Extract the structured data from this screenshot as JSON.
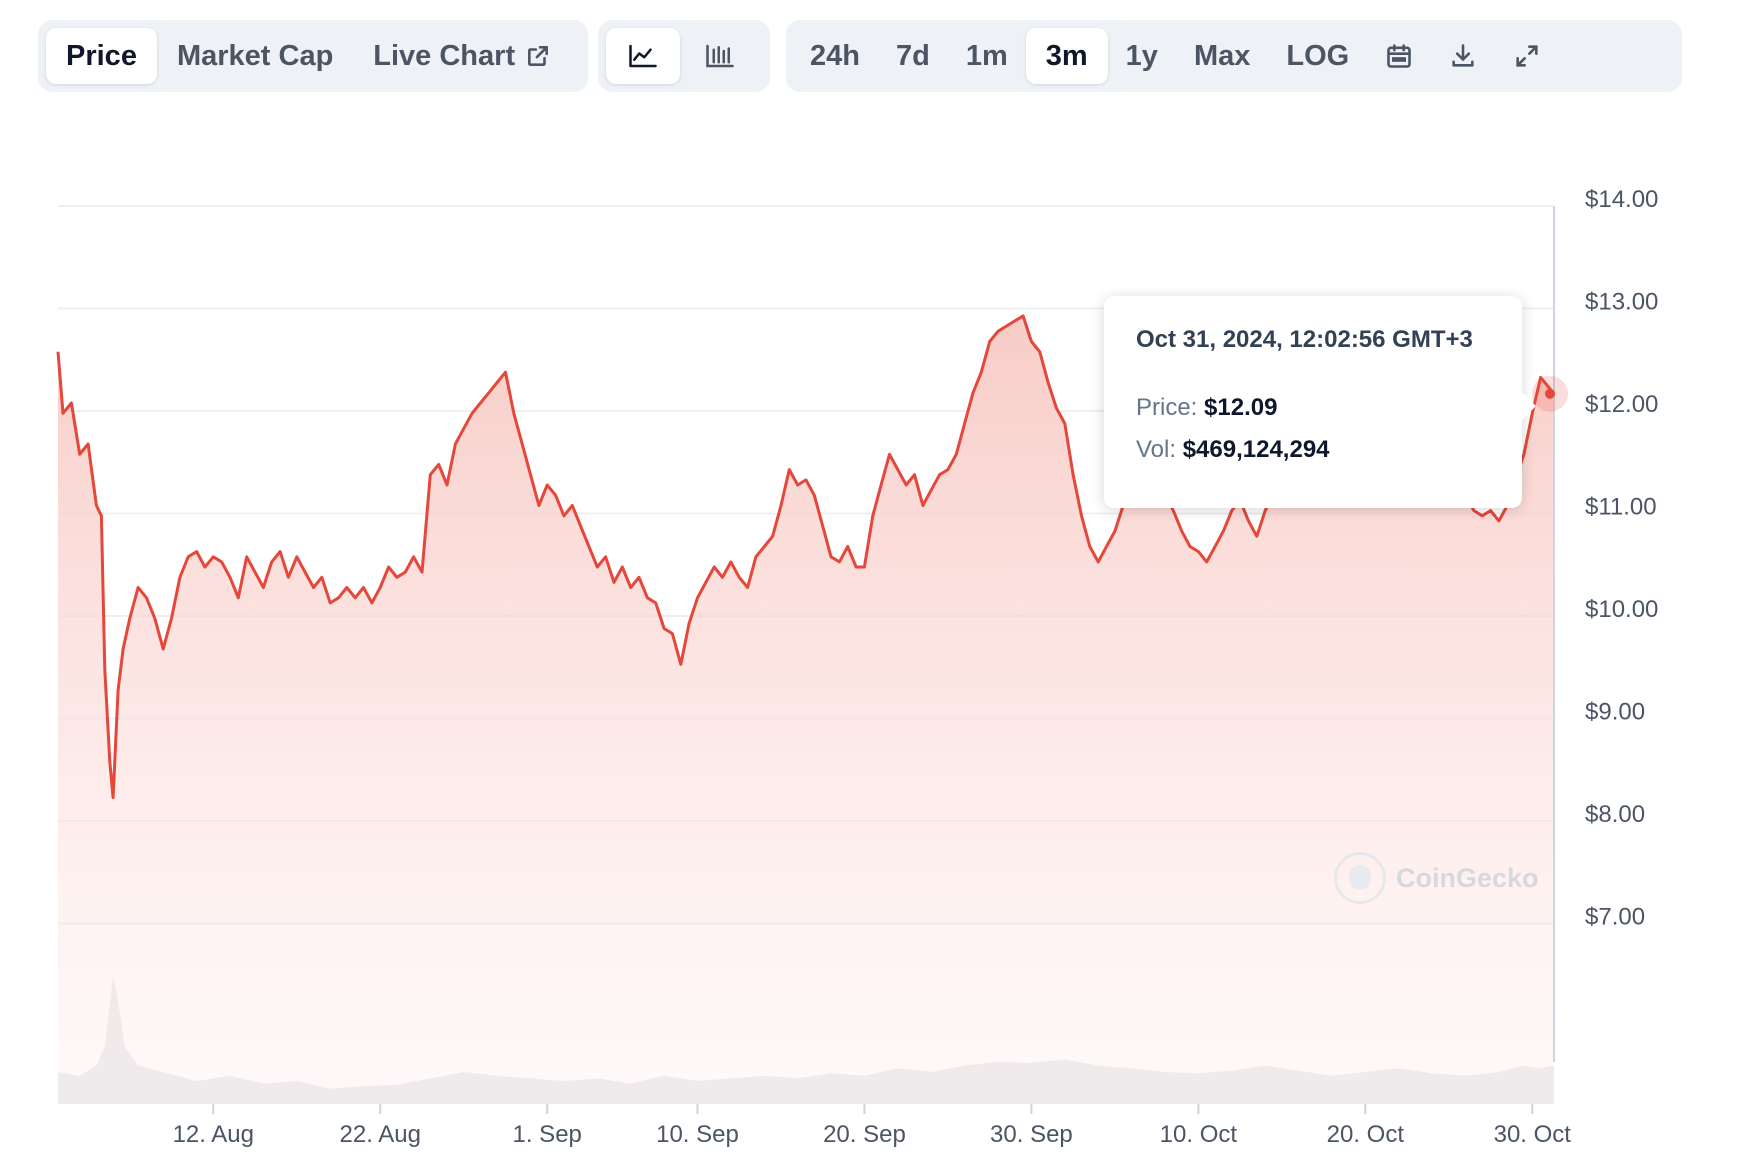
{
  "toolbar": {
    "view_tabs": [
      {
        "label": "Price",
        "active": true
      },
      {
        "label": "Market Cap",
        "active": false
      },
      {
        "label": "Live Chart",
        "active": false
      }
    ],
    "chart_types": [
      {
        "icon": "line-chart-icon",
        "active": true
      },
      {
        "icon": "candlestick-chart-icon",
        "active": false
      }
    ],
    "ranges": [
      {
        "label": "24h",
        "active": false
      },
      {
        "label": "7d",
        "active": false
      },
      {
        "label": "1m",
        "active": false
      },
      {
        "label": "3m",
        "active": true
      },
      {
        "label": "1y",
        "active": false
      },
      {
        "label": "Max",
        "active": false
      },
      {
        "label": "LOG",
        "active": false
      }
    ],
    "tools": [
      {
        "icon": "calendar-icon"
      },
      {
        "icon": "download-icon"
      },
      {
        "icon": "fullscreen-icon"
      }
    ]
  },
  "tooltip": {
    "date": "Oct 31, 2024, 12:02:56 GMT+3",
    "price_label": "Price:",
    "price_value": "$12.09",
    "vol_label": "Vol:",
    "vol_value": "$469,124,294"
  },
  "watermark": "CoinGecko",
  "colors": {
    "line": "#e5473a",
    "area_top": "#f8c9c4",
    "volume": "#e5e7eb",
    "grid": "#edf0f3",
    "axis_text": "#4b5563"
  },
  "chart_data": {
    "type": "area",
    "y_ticks": [
      "$14.00",
      "$13.00",
      "$12.00",
      "$11.00",
      "$10.00",
      "$9.00",
      "$8.00",
      "$7.00"
    ],
    "y_tick_values": [
      14,
      13,
      12,
      11,
      10,
      9,
      8,
      7
    ],
    "x_ticks": [
      "12. Aug",
      "22. Aug",
      "1. Sep",
      "10. Sep",
      "20. Sep",
      "30. Sep",
      "10. Oct",
      "20. Oct",
      "30. Oct"
    ],
    "x_tick_days": [
      9,
      19,
      29,
      38,
      48,
      58,
      68,
      78,
      88
    ],
    "x_range_days": [
      -0.3,
      89.3
    ],
    "ylim": [
      7,
      14
    ],
    "price_series": {
      "name": "Price",
      "points": [
        [
          -0.3,
          12.5
        ],
        [
          0.0,
          11.9
        ],
        [
          0.5,
          12.0
        ],
        [
          1.0,
          11.5
        ],
        [
          1.5,
          11.6
        ],
        [
          2.0,
          11.0
        ],
        [
          2.3,
          10.9
        ],
        [
          2.5,
          9.4
        ],
        [
          2.8,
          8.5
        ],
        [
          3.0,
          8.15
        ],
        [
          3.3,
          9.2
        ],
        [
          3.6,
          9.6
        ],
        [
          4.0,
          9.9
        ],
        [
          4.5,
          10.2
        ],
        [
          5.0,
          10.1
        ],
        [
          5.5,
          9.9
        ],
        [
          6.0,
          9.6
        ],
        [
          6.5,
          9.9
        ],
        [
          7.0,
          10.3
        ],
        [
          7.5,
          10.5
        ],
        [
          8.0,
          10.55
        ],
        [
          8.5,
          10.4
        ],
        [
          9.0,
          10.5
        ],
        [
          9.5,
          10.45
        ],
        [
          10.0,
          10.3
        ],
        [
          10.5,
          10.1
        ],
        [
          11.0,
          10.5
        ],
        [
          11.5,
          10.35
        ],
        [
          12.0,
          10.2
        ],
        [
          12.5,
          10.45
        ],
        [
          13.0,
          10.55
        ],
        [
          13.5,
          10.3
        ],
        [
          14.0,
          10.5
        ],
        [
          14.5,
          10.35
        ],
        [
          15.0,
          10.2
        ],
        [
          15.5,
          10.3
        ],
        [
          16.0,
          10.05
        ],
        [
          16.5,
          10.1
        ],
        [
          17.0,
          10.2
        ],
        [
          17.5,
          10.1
        ],
        [
          18.0,
          10.2
        ],
        [
          18.5,
          10.05
        ],
        [
          19.0,
          10.2
        ],
        [
          19.5,
          10.4
        ],
        [
          20.0,
          10.3
        ],
        [
          20.5,
          10.35
        ],
        [
          21.0,
          10.5
        ],
        [
          21.5,
          10.35
        ],
        [
          22.0,
          11.3
        ],
        [
          22.5,
          11.4
        ],
        [
          23.0,
          11.2
        ],
        [
          23.5,
          11.6
        ],
        [
          24.0,
          11.75
        ],
        [
          24.5,
          11.9
        ],
        [
          25.0,
          12.0
        ],
        [
          25.5,
          12.1
        ],
        [
          26.0,
          12.2
        ],
        [
          26.5,
          12.3
        ],
        [
          27.0,
          11.9
        ],
        [
          27.5,
          11.6
        ],
        [
          28.0,
          11.3
        ],
        [
          28.5,
          11.0
        ],
        [
          29.0,
          11.2
        ],
        [
          29.5,
          11.1
        ],
        [
          30.0,
          10.9
        ],
        [
          30.5,
          11.0
        ],
        [
          31.0,
          10.8
        ],
        [
          31.5,
          10.6
        ],
        [
          32.0,
          10.4
        ],
        [
          32.5,
          10.5
        ],
        [
          33.0,
          10.25
        ],
        [
          33.5,
          10.4
        ],
        [
          34.0,
          10.2
        ],
        [
          34.5,
          10.3
        ],
        [
          35.0,
          10.1
        ],
        [
          35.5,
          10.05
        ],
        [
          36.0,
          9.8
        ],
        [
          36.5,
          9.75
        ],
        [
          37.0,
          9.45
        ],
        [
          37.5,
          9.85
        ],
        [
          38.0,
          10.1
        ],
        [
          38.5,
          10.25
        ],
        [
          39.0,
          10.4
        ],
        [
          39.5,
          10.3
        ],
        [
          40.0,
          10.45
        ],
        [
          40.5,
          10.3
        ],
        [
          41.0,
          10.2
        ],
        [
          41.5,
          10.5
        ],
        [
          42.0,
          10.6
        ],
        [
          42.5,
          10.7
        ],
        [
          43.0,
          11.0
        ],
        [
          43.5,
          11.35
        ],
        [
          44.0,
          11.2
        ],
        [
          44.5,
          11.25
        ],
        [
          45.0,
          11.1
        ],
        [
          45.5,
          10.8
        ],
        [
          46.0,
          10.5
        ],
        [
          46.5,
          10.45
        ],
        [
          47.0,
          10.6
        ],
        [
          47.5,
          10.4
        ],
        [
          48.0,
          10.4
        ],
        [
          48.5,
          10.9
        ],
        [
          49.0,
          11.2
        ],
        [
          49.5,
          11.5
        ],
        [
          50.0,
          11.35
        ],
        [
          50.5,
          11.2
        ],
        [
          51.0,
          11.3
        ],
        [
          51.5,
          11.0
        ],
        [
          52.0,
          11.15
        ],
        [
          52.5,
          11.3
        ],
        [
          53.0,
          11.35
        ],
        [
          53.5,
          11.5
        ],
        [
          54.0,
          11.8
        ],
        [
          54.5,
          12.1
        ],
        [
          55.0,
          12.3
        ],
        [
          55.5,
          12.6
        ],
        [
          56.0,
          12.7
        ],
        [
          56.5,
          12.75
        ],
        [
          57.0,
          12.8
        ],
        [
          57.5,
          12.85
        ],
        [
          58.0,
          12.6
        ],
        [
          58.5,
          12.5
        ],
        [
          59.0,
          12.2
        ],
        [
          59.5,
          11.95
        ],
        [
          60.0,
          11.8
        ],
        [
          60.5,
          11.3
        ],
        [
          61.0,
          10.9
        ],
        [
          61.5,
          10.6
        ],
        [
          62.0,
          10.45
        ],
        [
          62.5,
          10.6
        ],
        [
          63.0,
          10.75
        ],
        [
          63.5,
          11.0
        ],
        [
          64.0,
          11.1
        ],
        [
          64.5,
          11.2
        ],
        [
          65.0,
          11.3
        ],
        [
          65.5,
          11.2
        ],
        [
          66.0,
          11.1
        ],
        [
          66.5,
          10.95
        ],
        [
          67.0,
          10.75
        ],
        [
          67.5,
          10.6
        ],
        [
          68.0,
          10.55
        ],
        [
          68.5,
          10.45
        ],
        [
          69.0,
          10.6
        ],
        [
          69.5,
          10.75
        ],
        [
          70.0,
          10.95
        ],
        [
          70.5,
          11.05
        ],
        [
          71.0,
          10.85
        ],
        [
          71.5,
          10.7
        ],
        [
          72.0,
          10.95
        ],
        [
          72.5,
          11.1
        ],
        [
          73.0,
          11.3
        ],
        [
          73.5,
          11.35
        ],
        [
          74.0,
          11.25
        ],
        [
          74.5,
          11.0
        ],
        [
          75.0,
          11.1
        ],
        [
          76.0,
          11.2
        ],
        [
          77.0,
          11.15
        ],
        [
          78.0,
          11.3
        ],
        [
          79.0,
          11.2
        ],
        [
          80.0,
          11.25
        ],
        [
          81.0,
          11.3
        ],
        [
          82.0,
          11.15
        ],
        [
          83.0,
          11.1
        ],
        [
          84.0,
          11.1
        ],
        [
          84.5,
          10.95
        ],
        [
          85.0,
          10.9
        ],
        [
          85.5,
          10.95
        ],
        [
          86.0,
          10.85
        ],
        [
          86.5,
          11.0
        ],
        [
          87.0,
          11.25
        ],
        [
          87.5,
          11.5
        ],
        [
          88.0,
          11.9
        ],
        [
          88.5,
          12.25
        ],
        [
          89.0,
          12.15
        ],
        [
          89.3,
          12.09
        ]
      ]
    },
    "volume_series": {
      "name": "Vol",
      "points": [
        [
          -0.3,
          0.25
        ],
        [
          1.0,
          0.22
        ],
        [
          2.0,
          0.3
        ],
        [
          2.5,
          0.45
        ],
        [
          3.0,
          1.0
        ],
        [
          3.3,
          0.8
        ],
        [
          3.7,
          0.45
        ],
        [
          4.5,
          0.3
        ],
        [
          6.0,
          0.25
        ],
        [
          8.0,
          0.18
        ],
        [
          10.0,
          0.22
        ],
        [
          12.0,
          0.16
        ],
        [
          14.0,
          0.18
        ],
        [
          16.0,
          0.12
        ],
        [
          18.0,
          0.14
        ],
        [
          20.0,
          0.15
        ],
        [
          22.0,
          0.2
        ],
        [
          24.0,
          0.25
        ],
        [
          26.0,
          0.22
        ],
        [
          28.0,
          0.2
        ],
        [
          30.0,
          0.18
        ],
        [
          32.0,
          0.2
        ],
        [
          34.0,
          0.16
        ],
        [
          36.0,
          0.22
        ],
        [
          38.0,
          0.18
        ],
        [
          40.0,
          0.2
        ],
        [
          42.0,
          0.22
        ],
        [
          44.0,
          0.2
        ],
        [
          46.0,
          0.24
        ],
        [
          48.0,
          0.22
        ],
        [
          50.0,
          0.28
        ],
        [
          52.0,
          0.25
        ],
        [
          54.0,
          0.3
        ],
        [
          56.0,
          0.33
        ],
        [
          58.0,
          0.32
        ],
        [
          60.0,
          0.35
        ],
        [
          62.0,
          0.3
        ],
        [
          64.0,
          0.28
        ],
        [
          66.0,
          0.25
        ],
        [
          68.0,
          0.24
        ],
        [
          70.0,
          0.26
        ],
        [
          72.0,
          0.3
        ],
        [
          74.0,
          0.26
        ],
        [
          76.0,
          0.22
        ],
        [
          78.0,
          0.25
        ],
        [
          80.0,
          0.28
        ],
        [
          82.0,
          0.24
        ],
        [
          84.0,
          0.22
        ],
        [
          86.0,
          0.25
        ],
        [
          87.5,
          0.3
        ],
        [
          88.5,
          0.28
        ],
        [
          89.3,
          0.3
        ]
      ]
    },
    "highlight_point": {
      "x": 89.3,
      "y": 12.09
    },
    "grid": true
  }
}
